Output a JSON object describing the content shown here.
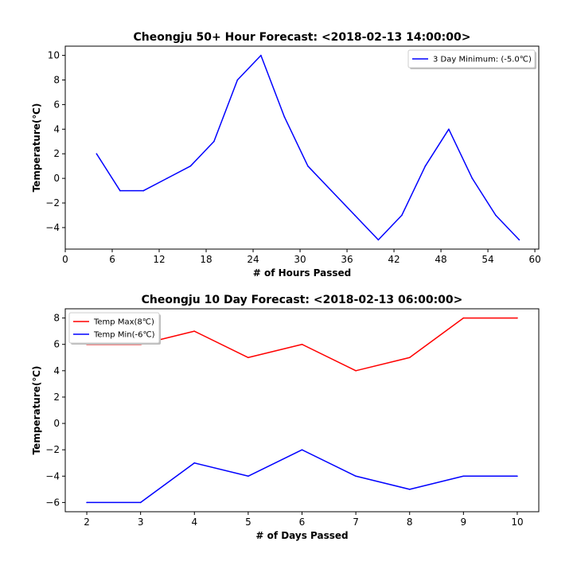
{
  "chart_data": [
    {
      "type": "line",
      "title": "Cheongju 50+ Hour Forecast: <2018-02-13 14:00:00>",
      "xlabel": "# of Hours Passed",
      "ylabel": "Temperature(℃)",
      "xlim": [
        0,
        60.5
      ],
      "ylim": [
        -5.75,
        10.75
      ],
      "xticks": [
        0,
        6,
        12,
        18,
        24,
        30,
        36,
        42,
        48,
        54,
        60
      ],
      "yticks": [
        -4,
        -2,
        0,
        2,
        4,
        6,
        8,
        10
      ],
      "ytick_labels": [
        "−4",
        "−2",
        "0",
        "2",
        "4",
        "6",
        "8",
        "10"
      ],
      "legend_position": "top-right",
      "series": [
        {
          "name": "3 Day Minimum: (-5.0℃)",
          "color": "#0000ff",
          "x": [
            4,
            7,
            10,
            13,
            16,
            19,
            22,
            25,
            28,
            31,
            34,
            37,
            40,
            43,
            46,
            49,
            52,
            55,
            58
          ],
          "y": [
            2,
            -1,
            -1,
            0,
            1,
            3,
            8,
            10,
            5,
            1,
            -1,
            -3,
            -5,
            -3,
            1,
            4,
            0,
            -3,
            -5
          ]
        }
      ]
    },
    {
      "type": "line",
      "title": "Cheongju 10 Day Forecast: <2018-02-13 06:00:00>",
      "xlabel": "# of Days Passed",
      "ylabel": "Temperature(℃)",
      "xlim": [
        1.6,
        10.4
      ],
      "ylim": [
        -6.7,
        8.7
      ],
      "xticks": [
        2,
        3,
        4,
        5,
        6,
        7,
        8,
        9,
        10
      ],
      "yticks": [
        -6,
        -4,
        -2,
        0,
        2,
        4,
        6,
        8
      ],
      "ytick_labels": [
        "−6",
        "−4",
        "−2",
        "0",
        "2",
        "4",
        "6",
        "8"
      ],
      "legend_position": "top-left",
      "series": [
        {
          "name": "Temp Max(8℃)",
          "color": "#ff0000",
          "x": [
            2,
            3,
            4,
            5,
            6,
            7,
            8,
            9,
            10
          ],
          "y": [
            6,
            6,
            7,
            5,
            6,
            4,
            5,
            8,
            8
          ]
        },
        {
          "name": "Temp Min(-6℃)",
          "color": "#0000ff",
          "x": [
            2,
            3,
            4,
            5,
            6,
            7,
            8,
            9,
            10
          ],
          "y": [
            -6,
            -6,
            -3,
            -4,
            -2,
            -4,
            -5,
            -4,
            -4
          ]
        }
      ]
    }
  ]
}
